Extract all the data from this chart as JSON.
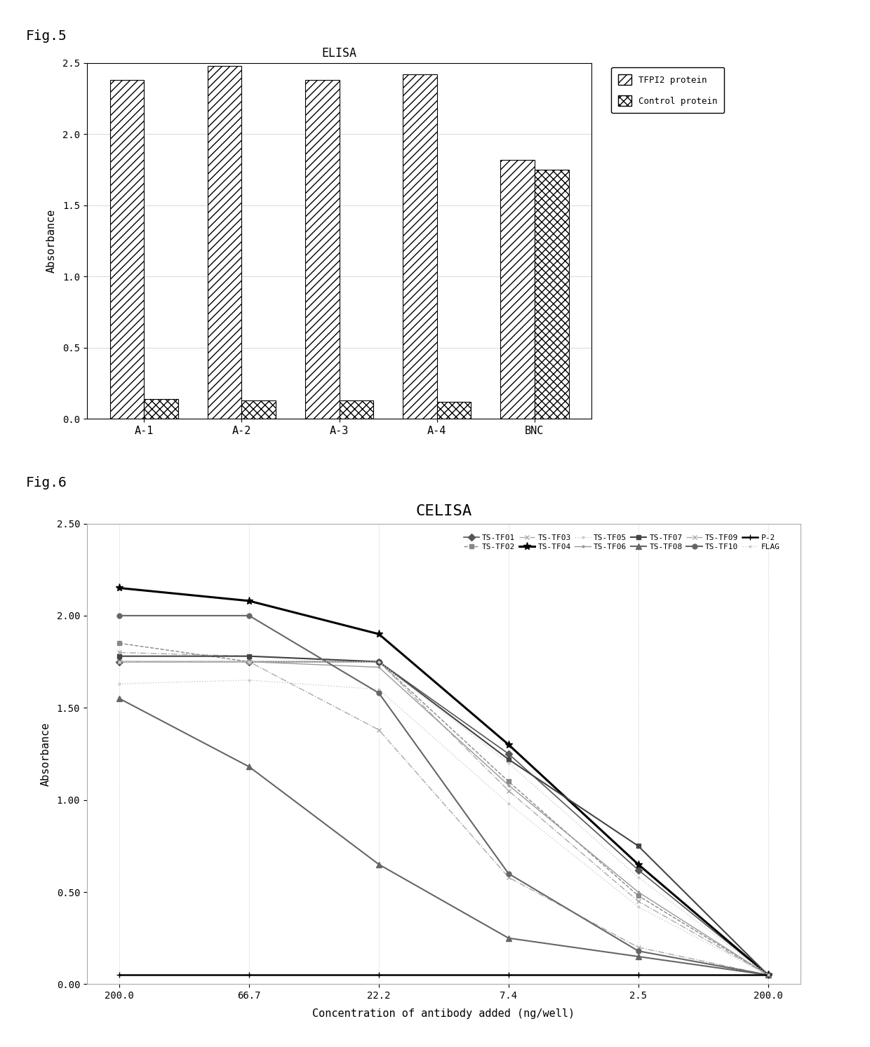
{
  "fig5": {
    "title": "ELISA",
    "fig_label": "Fig.5",
    "categories": [
      "A-1",
      "A-2",
      "A-3",
      "A-4",
      "BNC"
    ],
    "tfpi2_values": [
      2.38,
      2.48,
      2.38,
      2.42,
      1.82
    ],
    "control_values": [
      0.14,
      0.13,
      0.13,
      0.12,
      1.75
    ],
    "ylabel": "Absorbance",
    "ylim": [
      0.0,
      2.5
    ],
    "yticks": [
      0.0,
      0.5,
      1.0,
      1.5,
      2.0,
      2.5
    ],
    "tfpi2_hatch": "///",
    "control_hatch": "xxx",
    "legend_tfpi2": "TFPI2 protein",
    "legend_control": "Control protein",
    "bar_width": 0.35
  },
  "fig6": {
    "title": "CELISA",
    "fig_label": "Fig.6",
    "xlabel": "Concentration of antibody added (ng/well)",
    "ylabel": "Absorbance",
    "x_labels": [
      "200.0",
      "66.7",
      "22.2",
      "7.4",
      "2.5",
      "200.0"
    ],
    "x_positions": [
      0,
      1,
      2,
      3,
      4,
      5
    ],
    "ylim": [
      0.0,
      2.5
    ],
    "yticks": [
      0.0,
      0.5,
      1.0,
      1.5,
      2.0,
      2.5
    ],
    "series_order": [
      "TS-TF01",
      "TS-TF02",
      "TS-TF03",
      "TS-TF04",
      "TS-TF05",
      "TS-TF06",
      "TS-TF07",
      "TS-TF08",
      "TS-TF09",
      "TS-TF10",
      "P-2",
      "FLAG"
    ],
    "series": {
      "TS-TF01": {
        "values": [
          1.75,
          1.75,
          1.75,
          1.25,
          0.62,
          0.05
        ],
        "marker": "D",
        "color": "#555555",
        "linestyle": "-",
        "linewidth": 1.2,
        "markersize": 5
      },
      "TS-TF02": {
        "values": [
          1.85,
          1.75,
          1.75,
          1.1,
          0.48,
          0.05
        ],
        "marker": "s",
        "color": "#888888",
        "linestyle": "--",
        "linewidth": 1.0,
        "markersize": 5
      },
      "TS-TF03": {
        "values": [
          1.8,
          1.78,
          1.75,
          1.05,
          0.45,
          0.05
        ],
        "marker": "x",
        "color": "#aaaaaa",
        "linestyle": "-.",
        "linewidth": 1.0,
        "markersize": 5
      },
      "TS-TF04": {
        "values": [
          2.15,
          2.08,
          1.9,
          1.3,
          0.65,
          0.05
        ],
        "marker": "*",
        "color": "#000000",
        "linestyle": "-",
        "linewidth": 2.2,
        "markersize": 8
      },
      "TS-TF05": {
        "values": [
          1.63,
          1.65,
          1.6,
          0.98,
          0.42,
          0.05
        ],
        "marker": ".",
        "color": "#cccccc",
        "linestyle": ":",
        "linewidth": 1.0,
        "markersize": 4
      },
      "TS-TF06": {
        "values": [
          1.75,
          1.75,
          1.72,
          1.08,
          0.5,
          0.05
        ],
        "marker": ".",
        "color": "#999999",
        "linestyle": "-",
        "linewidth": 1.0,
        "markersize": 4
      },
      "TS-TF07": {
        "values": [
          1.78,
          1.78,
          1.75,
          1.22,
          0.75,
          0.05
        ],
        "marker": "s",
        "color": "#444444",
        "linestyle": "-",
        "linewidth": 1.5,
        "markersize": 5
      },
      "TS-TF08": {
        "values": [
          1.55,
          1.18,
          0.65,
          0.25,
          0.15,
          0.05
        ],
        "marker": "^",
        "color": "#666666",
        "linestyle": "-",
        "linewidth": 1.5,
        "markersize": 6
      },
      "TS-TF09": {
        "values": [
          1.75,
          1.75,
          1.38,
          0.58,
          0.2,
          0.05
        ],
        "marker": "x",
        "color": "#aaaaaa",
        "linestyle": "-.",
        "linewidth": 1.0,
        "markersize": 5
      },
      "TS-TF10": {
        "values": [
          2.0,
          2.0,
          1.58,
          0.6,
          0.18,
          0.05
        ],
        "marker": "o",
        "color": "#666666",
        "linestyle": "-",
        "linewidth": 1.5,
        "markersize": 5
      },
      "P-2": {
        "values": [
          0.05,
          0.05,
          0.05,
          0.05,
          0.05,
          0.05
        ],
        "marker": "+",
        "color": "#000000",
        "linestyle": "-",
        "linewidth": 1.8,
        "markersize": 6
      },
      "FLAG": {
        "values": [
          1.75,
          1.75,
          1.75,
          1.2,
          0.58,
          0.05
        ],
        "marker": ".",
        "color": "#cccccc",
        "linestyle": ":",
        "linewidth": 1.0,
        "markersize": 4
      }
    }
  }
}
